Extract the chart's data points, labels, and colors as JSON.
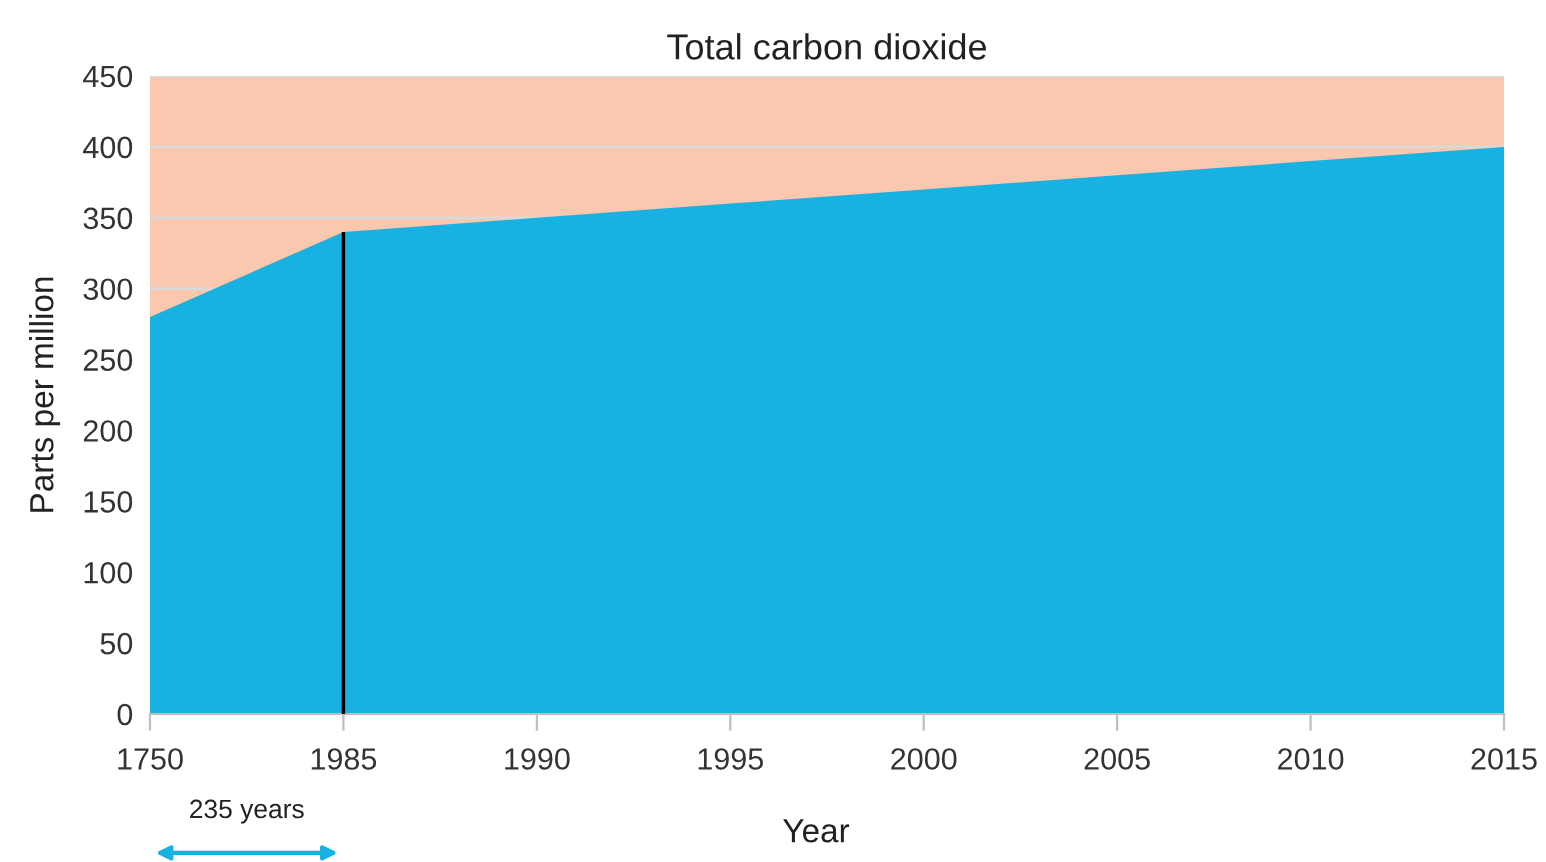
{
  "chart_data": {
    "type": "area",
    "title": "Total carbon dioxide",
    "xlabel": "Year",
    "ylabel": "Parts per million",
    "categories": [
      "1750",
      "1985",
      "1990",
      "1995",
      "2000",
      "2005",
      "2010",
      "2015"
    ],
    "series": [
      {
        "color": "#fac8ae",
        "values": [
          450,
          450,
          450,
          450,
          450,
          450,
          450,
          450
        ]
      },
      {
        "color": "#17b1e2",
        "values": [
          280,
          340,
          350,
          360,
          370,
          380,
          390,
          400
        ]
      }
    ],
    "ylim": [
      0,
      450
    ],
    "yticks": [
      0,
      50,
      100,
      150,
      200,
      250,
      300,
      350,
      400,
      450
    ],
    "grid": "y",
    "ref_lines": [
      {
        "axis": "x",
        "value": "1985",
        "color": "#000000"
      }
    ],
    "annotations": [
      "235 years"
    ]
  }
}
